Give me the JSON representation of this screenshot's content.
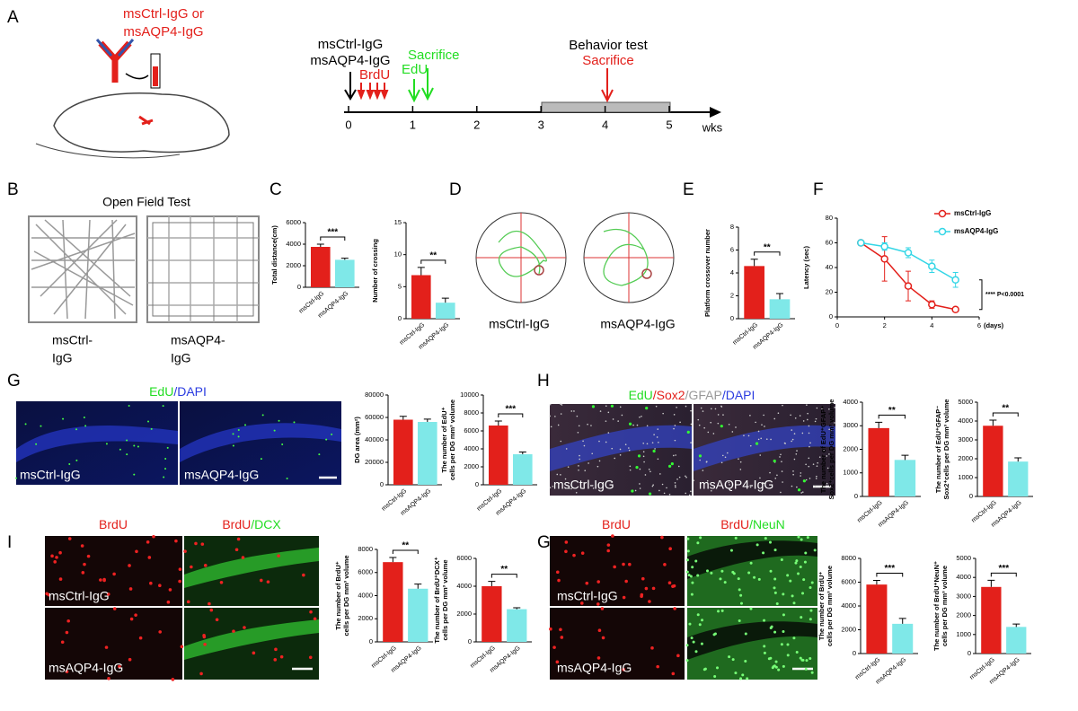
{
  "panel_a": {
    "label": "A",
    "antibody": [
      "msCtrl-IgG or",
      "msAQP4-IgG"
    ],
    "groups": [
      "msCtrl-IgG",
      "msAQP4-IgG"
    ],
    "brdu": "BrdU",
    "edu": "EdU",
    "sacrifice_early": "Sacrifice",
    "behavior": "Behavior test",
    "sacrifice_late": "Sacrifice",
    "ticks": [
      0,
      1,
      2,
      3,
      4,
      5
    ],
    "unit": "wks"
  },
  "panel_b": {
    "label": "B",
    "title": "Open Field Test",
    "groups": [
      [
        "msCtrl-",
        "IgG"
      ],
      [
        "msAQP4-",
        "IgG"
      ]
    ]
  },
  "panel_c": {
    "label": "C"
  },
  "panel_d": {
    "label": "D",
    "groups": [
      "msCtrl-IgG",
      "msAQP4-IgG"
    ]
  },
  "panel_e": {
    "label": "E"
  },
  "panel_f": {
    "label": "F"
  },
  "panel_g": {
    "label": "G",
    "stain": [
      {
        "text": "EdU",
        "color": "#22dd22"
      },
      {
        "text": "/DAPI",
        "color": "#2a3be0"
      }
    ],
    "groups": [
      "msCtrl-IgG",
      "msAQP4-IgG"
    ]
  },
  "panel_h": {
    "label": "H",
    "stain": [
      {
        "text": "EdU",
        "color": "#22dd22"
      },
      {
        "text": "/Sox2",
        "color": "#e3201b"
      },
      {
        "text": "/GFAP",
        "color": "#999999"
      },
      {
        "text": "/DAPI",
        "color": "#2a3be0"
      }
    ],
    "groups": [
      "msCtrl-IgG",
      "msAQP4-IgG"
    ]
  },
  "panel_i": {
    "label": "I",
    "stains": [
      [
        {
          "text": "BrdU",
          "color": "#e3201b"
        }
      ],
      [
        {
          "text": "BrdU",
          "color": "#e3201b"
        },
        {
          "text": "/DCX",
          "color": "#22dd22"
        }
      ]
    ],
    "groups": [
      "msCtrl-IgG",
      "msAQP4-IgG"
    ]
  },
  "panel_g2": {
    "label": "G",
    "stains": [
      [
        {
          "text": "BrdU",
          "color": "#e3201b"
        }
      ],
      [
        {
          "text": "BrdU",
          "color": "#e3201b"
        },
        {
          "text": "/NeuN",
          "color": "#22dd22"
        }
      ]
    ],
    "groups": [
      "msCtrl-IgG",
      "msAQP4-IgG"
    ]
  },
  "chart_data": [
    {
      "type": "bar",
      "ylabel": [
        "Total distance(cm)"
      ],
      "categories": [
        "msCtrl-IgG",
        "msAQP4-IgG"
      ],
      "values": [
        3750,
        2550
      ],
      "errors": [
        250,
        150
      ],
      "colors": [
        "#e3201b",
        "#7fe8e8"
      ],
      "ylim": [
        0,
        6000
      ],
      "yticks": [
        0,
        2000,
        4000,
        6000
      ],
      "significance": "***"
    },
    {
      "type": "bar",
      "ylabel": [
        "Number of crossing"
      ],
      "categories": [
        "msCtrl-IgG",
        "msAQP4-IgG"
      ],
      "values": [
        6.8,
        2.5
      ],
      "errors": [
        1.2,
        0.7
      ],
      "colors": [
        "#e3201b",
        "#7fe8e8"
      ],
      "ylim": [
        0,
        15
      ],
      "yticks": [
        0,
        5,
        10,
        15
      ],
      "significance": "**"
    },
    {
      "type": "bar",
      "ylabel": [
        "Platform crossover number"
      ],
      "categories": [
        "msCtrl-IgG",
        "msAQP4-IgG"
      ],
      "values": [
        4.6,
        1.7
      ],
      "errors": [
        0.6,
        0.5
      ],
      "colors": [
        "#e3201b",
        "#7fe8e8"
      ],
      "ylim": [
        0,
        8
      ],
      "yticks": [
        0,
        2,
        4,
        6,
        8
      ],
      "significance": "**"
    },
    {
      "type": "line",
      "ylabel": [
        "Latency (sec)"
      ],
      "xlabel": "(days)",
      "x": [
        1,
        2,
        3,
        4,
        5
      ],
      "xlim": [
        0,
        6
      ],
      "xticks": [
        0,
        2,
        4,
        6
      ],
      "ylim": [
        0,
        80
      ],
      "yticks": [
        0,
        20,
        40,
        60,
        80
      ],
      "annotation": "**** P<0.0001",
      "series": [
        {
          "name": "msCtrl-IgG",
          "color": "#e3201b",
          "values": [
            60,
            47,
            25,
            10,
            6
          ],
          "errors": [
            0,
            18,
            12,
            3,
            1
          ]
        },
        {
          "name": "msAQP4-IgG",
          "color": "#33d6e6",
          "values": [
            60,
            57,
            52,
            41,
            30
          ],
          "errors": [
            0,
            3,
            4,
            5,
            6
          ]
        }
      ]
    },
    {
      "type": "bar",
      "ylabel": [
        "DG area (mm²)"
      ],
      "categories": [
        "msCtrl-IgG",
        "msAQP4-IgG"
      ],
      "values": [
        58000,
        56000
      ],
      "errors": [
        3000,
        2500
      ],
      "colors": [
        "#e3201b",
        "#7fe8e8"
      ],
      "ylim": [
        0,
        80000
      ],
      "yticks": [
        0,
        20000,
        40000,
        60000,
        80000
      ]
    },
    {
      "type": "bar",
      "ylabel": [
        "The number of EdU⁺",
        "cells per DG mm³ volume"
      ],
      "categories": [
        "msCtrl-IgG",
        "msAQP4-IgG"
      ],
      "values": [
        6600,
        3400
      ],
      "errors": [
        500,
        250
      ],
      "colors": [
        "#e3201b",
        "#7fe8e8"
      ],
      "ylim": [
        0,
        10000
      ],
      "yticks": [
        0,
        2000,
        4000,
        6000,
        8000,
        10000
      ],
      "significance": "***"
    },
    {
      "type": "bar",
      "ylabel": [
        "The number of EdU⁺GFAP⁺",
        "Sox2⁺cells per DG mm³ volume"
      ],
      "categories": [
        "msCtrl-IgG",
        "msAQP4-IgG"
      ],
      "values": [
        2900,
        1550
      ],
      "errors": [
        250,
        200
      ],
      "colors": [
        "#e3201b",
        "#7fe8e8"
      ],
      "ylim": [
        0,
        4000
      ],
      "yticks": [
        0,
        1000,
        2000,
        3000,
        4000
      ],
      "significance": "**"
    },
    {
      "type": "bar",
      "ylabel": [
        "The number of EdU⁺GFAP⁻",
        "Sox2⁺cells per DG mm³ volume"
      ],
      "categories": [
        "msCtrl-IgG",
        "msAQP4-IgG"
      ],
      "values": [
        3750,
        1850
      ],
      "errors": [
        300,
        200
      ],
      "colors": [
        "#e3201b",
        "#7fe8e8"
      ],
      "ylim": [
        0,
        5000
      ],
      "yticks": [
        0,
        1000,
        2000,
        3000,
        4000,
        5000
      ],
      "significance": "**"
    },
    {
      "type": "bar",
      "ylabel": [
        "The number of BrdU⁺",
        "cells per DG mm³ volume"
      ],
      "categories": [
        "msCtrl-IgG",
        "msAQP4-IgG"
      ],
      "values": [
        6900,
        4600
      ],
      "errors": [
        400,
        400
      ],
      "colors": [
        "#e3201b",
        "#7fe8e8"
      ],
      "ylim": [
        0,
        8000
      ],
      "yticks": [
        0,
        2000,
        4000,
        6000,
        8000
      ],
      "significance": "**"
    },
    {
      "type": "bar",
      "ylabel": [
        "The number of BrdU⁺DCX⁺",
        "cells per DG mm³ volume"
      ],
      "categories": [
        "msCtrl-IgG",
        "msAQP4-IgG"
      ],
      "values": [
        4000,
        2350
      ],
      "errors": [
        350,
        100
      ],
      "colors": [
        "#e3201b",
        "#7fe8e8"
      ],
      "ylim": [
        0,
        6000
      ],
      "yticks": [
        0,
        2000,
        4000,
        6000
      ],
      "significance": "**"
    },
    {
      "type": "bar",
      "ylabel": [
        "The number of BrdU⁺",
        "cells per DG mm³ volume"
      ],
      "categories": [
        "msCtrl-IgG",
        "msAQP4-IgG"
      ],
      "values": [
        5800,
        2500
      ],
      "errors": [
        350,
        450
      ],
      "colors": [
        "#e3201b",
        "#7fe8e8"
      ],
      "ylim": [
        0,
        8000
      ],
      "yticks": [
        0,
        2000,
        4000,
        6000,
        8000
      ],
      "significance": "***"
    },
    {
      "type": "bar",
      "ylabel": [
        "The number of BrdU⁺NeuN⁺",
        "cells per DG mm³ volume"
      ],
      "categories": [
        "msCtrl-IgG",
        "msAQP4-IgG"
      ],
      "values": [
        3500,
        1400
      ],
      "errors": [
        350,
        150
      ],
      "colors": [
        "#e3201b",
        "#7fe8e8"
      ],
      "ylim": [
        0,
        5000
      ],
      "yticks": [
        0,
        1000,
        2000,
        3000,
        4000,
        5000
      ],
      "significance": "***"
    }
  ]
}
